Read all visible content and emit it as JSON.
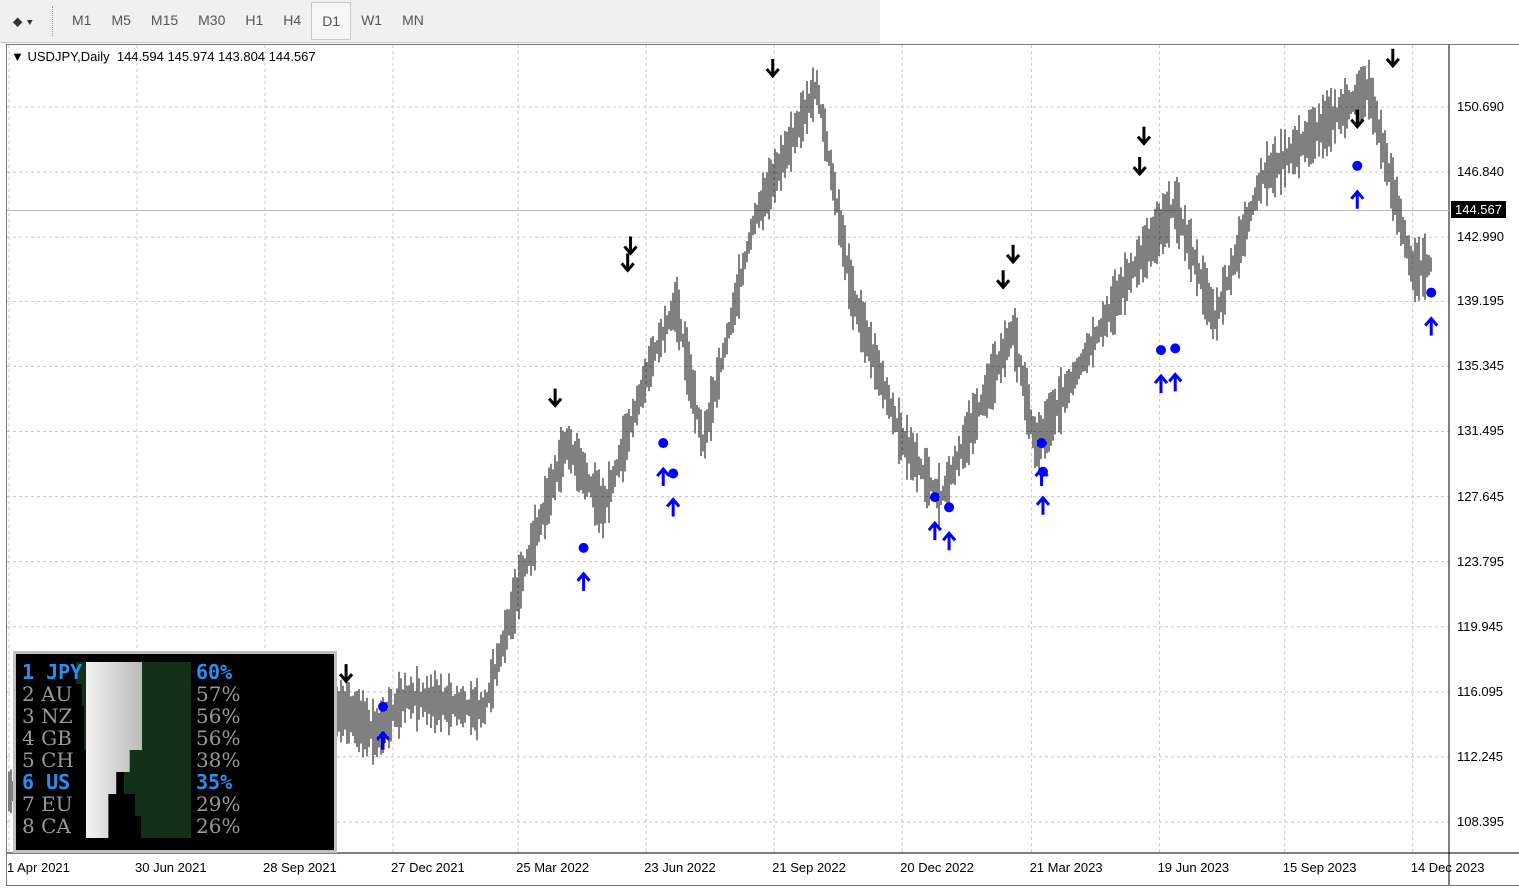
{
  "toolbar": {
    "timeframes": [
      "M1",
      "M5",
      "M15",
      "M30",
      "H1",
      "H4",
      "D1",
      "W1",
      "MN"
    ],
    "active": "D1"
  },
  "chart": {
    "header": "USDJPY,Daily  144.594 145.974 143.804 144.567",
    "current_price": "144.567",
    "y_ticks": [
      "150.690",
      "146.840",
      "142.990",
      "139.195",
      "135.345",
      "131.495",
      "127.645",
      "123.795",
      "119.945",
      "116.095",
      "112.245",
      "108.395"
    ],
    "x_ticks": [
      "1 Apr 2021",
      "30 Jun 2021",
      "28 Sep 2021",
      "27 Dec 2021",
      "25 Mar 2022",
      "23 Jun 2022",
      "21 Sep 2022",
      "20 Dec 2022",
      "21 Mar 2023",
      "19 Jun 2023",
      "15 Sep 2023",
      "14 Dec 2023"
    ],
    "price_path": [
      [
        "2021-04-01",
        110.2
      ],
      [
        "2021-06-30",
        111.0
      ],
      [
        "2021-09-20",
        110.0
      ],
      [
        "2021-10-20",
        114.5
      ],
      [
        "2021-11-24",
        115.0
      ],
      [
        "2021-12-15",
        113.6
      ],
      [
        "2022-01-05",
        115.8
      ],
      [
        "2022-03-01",
        115.0
      ],
      [
        "2022-03-28",
        123.0
      ],
      [
        "2022-04-28",
        130.8
      ],
      [
        "2022-05-24",
        126.9
      ],
      [
        "2022-06-28",
        136.0
      ],
      [
        "2022-07-14",
        139.0
      ],
      [
        "2022-08-02",
        130.8
      ],
      [
        "2022-09-07",
        144.0
      ],
      [
        "2022-10-21",
        151.9
      ],
      [
        "2022-11-15",
        139.5
      ],
      [
        "2022-12-20",
        131.0
      ],
      [
        "2023-01-16",
        127.5
      ],
      [
        "2023-03-08",
        137.5
      ],
      [
        "2023-03-24",
        130.6
      ],
      [
        "2023-05-30",
        140.9
      ],
      [
        "2023-06-30",
        144.9
      ],
      [
        "2023-07-28",
        138.1
      ],
      [
        "2023-08-30",
        146.5
      ],
      [
        "2023-11-13",
        151.8
      ],
      [
        "2023-12-14",
        141.0
      ],
      [
        "2023-12-28",
        141.4
      ]
    ],
    "sell_signals": [
      [
        "2021-10-18",
        117.3
      ],
      [
        "2021-11-24",
        117.2
      ],
      [
        "2022-04-20",
        133.5
      ],
      [
        "2022-06-10",
        141.5
      ],
      [
        "2022-06-12",
        142.5
      ],
      [
        "2022-09-20",
        153.0
      ],
      [
        "2023-03-01",
        140.5
      ],
      [
        "2023-03-08",
        142.0
      ],
      [
        "2023-06-05",
        147.2
      ],
      [
        "2023-06-08",
        149.0
      ],
      [
        "2023-11-05",
        150.0
      ],
      [
        "2023-11-30",
        153.6
      ]
    ],
    "buy_signals": [
      [
        "2021-09-25",
        112.0
      ],
      [
        "2021-10-28",
        113.0
      ],
      [
        "2021-11-01",
        111.8
      ],
      [
        "2021-12-20",
        113.2
      ],
      [
        "2022-05-10",
        122.6
      ],
      [
        "2022-07-05",
        128.8
      ],
      [
        "2022-07-12",
        127.0
      ],
      [
        "2023-01-12",
        125.6
      ],
      [
        "2023-01-22",
        125.0
      ],
      [
        "2023-03-28",
        128.8
      ],
      [
        "2023-03-29",
        127.1
      ],
      [
        "2023-06-20",
        134.3
      ],
      [
        "2023-06-30",
        134.4
      ],
      [
        "2023-11-05",
        145.2
      ],
      [
        "2023-12-27",
        137.7
      ]
    ],
    "colors": {
      "sell": "#000000",
      "buy": "#0000ff",
      "grid": "#c8c8c8"
    }
  },
  "strength_panel": {
    "rows": [
      {
        "rank": "1",
        "code": "JPY",
        "pct": "60%",
        "value": 60,
        "highlight": true
      },
      {
        "rank": "2",
        "code": "AU",
        "pct": "57%",
        "value": 57,
        "highlight": false
      },
      {
        "rank": "3",
        "code": "NZ",
        "pct": "56%",
        "value": 56,
        "highlight": false
      },
      {
        "rank": "4",
        "code": "GB",
        "pct": "56%",
        "value": 56,
        "highlight": false
      },
      {
        "rank": "5",
        "code": "CH",
        "pct": "38%",
        "value": 38,
        "highlight": false
      },
      {
        "rank": "6",
        "code": "US",
        "pct": "35%",
        "value": 35,
        "highlight": true
      },
      {
        "rank": "7",
        "code": "EU",
        "pct": "29%",
        "value": 29,
        "highlight": false
      },
      {
        "rank": "8",
        "code": "CA",
        "pct": "26%",
        "value": 26,
        "highlight": false
      }
    ]
  }
}
